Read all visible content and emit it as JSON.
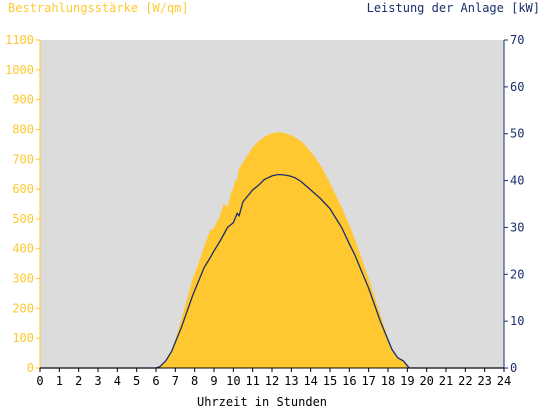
{
  "chart_data": {
    "type": "area",
    "title_left": "Bestrahlungsstärke [W/qm]",
    "title_right": "Leistung der Anlage [kW]",
    "xlabel": "Uhrzeit in Stunden",
    "xlim": [
      0,
      24
    ],
    "x_ticks": [
      "0",
      "1",
      "2",
      "3",
      "4",
      "5",
      "6",
      "7",
      "8",
      "9",
      "10",
      "11",
      "12",
      "13",
      "14",
      "15",
      "16",
      "17",
      "18",
      "19",
      "20",
      "21",
      "22",
      "23",
      "24"
    ],
    "y_left": {
      "lim": [
        0,
        1100
      ],
      "ticks": [
        "0",
        "100",
        "200",
        "300",
        "400",
        "500",
        "600",
        "700",
        "800",
        "900",
        "1000",
        "1100"
      ]
    },
    "y_right": {
      "lim": [
        0,
        70
      ],
      "ticks": [
        "0",
        "10",
        "20",
        "30",
        "40",
        "50",
        "60",
        "70"
      ]
    },
    "grid": false,
    "plot_background": "#dcdcdc",
    "colors": {
      "irradiance": "#ffc830",
      "power": "#1a2e6b",
      "left_axis": "#ffc830",
      "right_axis": "#1a2e6b"
    },
    "series": [
      {
        "axis": "left",
        "style": "area",
        "points": [
          [
            0,
            0
          ],
          [
            6.0,
            0
          ],
          [
            6.2,
            5
          ],
          [
            6.5,
            25
          ],
          [
            6.8,
            60
          ],
          [
            7.0,
            95
          ],
          [
            7.3,
            160
          ],
          [
            7.6,
            230
          ],
          [
            7.9,
            300
          ],
          [
            8.2,
            350
          ],
          [
            8.5,
            410
          ],
          [
            8.8,
            460
          ],
          [
            9.0,
            470
          ],
          [
            9.3,
            510
          ],
          [
            9.5,
            550
          ],
          [
            9.7,
            540
          ],
          [
            9.9,
            590
          ],
          [
            10.0,
            600
          ],
          [
            10.1,
            630
          ],
          [
            10.2,
            630
          ],
          [
            10.3,
            670
          ],
          [
            10.5,
            690
          ],
          [
            10.8,
            720
          ],
          [
            11.0,
            740
          ],
          [
            11.3,
            760
          ],
          [
            11.6,
            775
          ],
          [
            11.9,
            785
          ],
          [
            12.2,
            790
          ],
          [
            12.5,
            790
          ],
          [
            12.8,
            785
          ],
          [
            13.0,
            780
          ],
          [
            13.3,
            770
          ],
          [
            13.6,
            755
          ],
          [
            14.0,
            725
          ],
          [
            14.3,
            700
          ],
          [
            14.6,
            670
          ],
          [
            15.0,
            620
          ],
          [
            15.3,
            580
          ],
          [
            15.6,
            540
          ],
          [
            16.0,
            480
          ],
          [
            16.3,
            430
          ],
          [
            16.6,
            375
          ],
          [
            17.0,
            300
          ],
          [
            17.3,
            240
          ],
          [
            17.6,
            180
          ],
          [
            17.9,
            120
          ],
          [
            18.2,
            65
          ],
          [
            18.5,
            35
          ],
          [
            18.8,
            20
          ],
          [
            19.0,
            5
          ],
          [
            19.1,
            0
          ],
          [
            24,
            0
          ]
        ]
      },
      {
        "axis": "right",
        "style": "line",
        "points": [
          [
            0,
            0
          ],
          [
            6.0,
            0
          ],
          [
            6.2,
            0.3
          ],
          [
            6.5,
            1.5
          ],
          [
            6.8,
            3.5
          ],
          [
            7.0,
            5.5
          ],
          [
            7.3,
            8.5
          ],
          [
            7.6,
            12
          ],
          [
            7.9,
            15.5
          ],
          [
            8.2,
            18.5
          ],
          [
            8.5,
            21.5
          ],
          [
            8.8,
            23.5
          ],
          [
            9.0,
            25
          ],
          [
            9.3,
            27
          ],
          [
            9.5,
            28.5
          ],
          [
            9.7,
            30
          ],
          [
            10.0,
            31
          ],
          [
            10.2,
            33
          ],
          [
            10.3,
            32.5
          ],
          [
            10.5,
            35.5
          ],
          [
            10.8,
            37
          ],
          [
            11.0,
            38
          ],
          [
            11.3,
            39
          ],
          [
            11.6,
            40.2
          ],
          [
            12.0,
            41
          ],
          [
            12.3,
            41.3
          ],
          [
            12.6,
            41.2
          ],
          [
            12.9,
            41.0
          ],
          [
            13.2,
            40.6
          ],
          [
            13.5,
            39.8
          ],
          [
            14.0,
            38
          ],
          [
            14.5,
            36.2
          ],
          [
            15.0,
            34
          ],
          [
            15.3,
            32
          ],
          [
            15.6,
            30
          ],
          [
            16.0,
            26.5
          ],
          [
            16.3,
            24
          ],
          [
            16.6,
            21
          ],
          [
            17.0,
            17
          ],
          [
            17.3,
            13.5
          ],
          [
            17.6,
            10
          ],
          [
            17.9,
            7
          ],
          [
            18.2,
            4
          ],
          [
            18.5,
            2.2
          ],
          [
            18.8,
            1.5
          ],
          [
            19.0,
            0.5
          ],
          [
            19.1,
            0
          ],
          [
            24,
            0
          ]
        ]
      }
    ]
  }
}
